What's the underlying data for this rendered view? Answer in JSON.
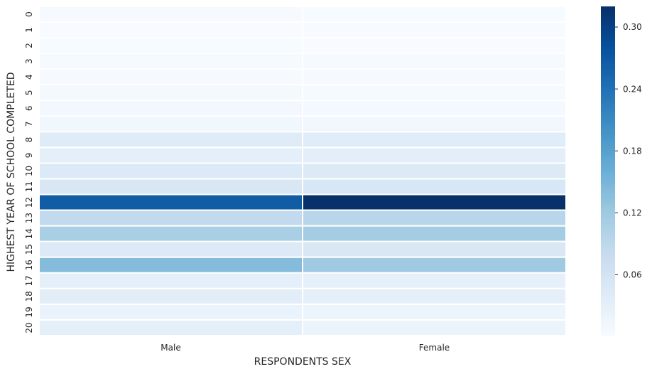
{
  "chart_data": {
    "type": "heatmap",
    "title": "",
    "xlabel": "RESPONDENTS SEX",
    "ylabel": "HIGHEST YEAR OF SCHOOL COMPLETED",
    "columns": [
      "Male",
      "Female"
    ],
    "rows": [
      "0",
      "1",
      "2",
      "3",
      "4",
      "5",
      "6",
      "7",
      "8",
      "9",
      "10",
      "11",
      "12",
      "13",
      "14",
      "15",
      "16",
      "17",
      "18",
      "19",
      "20"
    ],
    "values": [
      [
        0.003,
        0.002
      ],
      [
        0.001,
        0.001
      ],
      [
        0.002,
        0.001
      ],
      [
        0.004,
        0.004
      ],
      [
        0.003,
        0.003
      ],
      [
        0.005,
        0.004
      ],
      [
        0.008,
        0.007
      ],
      [
        0.012,
        0.011
      ],
      [
        0.04,
        0.038
      ],
      [
        0.032,
        0.033
      ],
      [
        0.045,
        0.044
      ],
      [
        0.05,
        0.052
      ],
      [
        0.265,
        0.32
      ],
      [
        0.085,
        0.095
      ],
      [
        0.11,
        0.115
      ],
      [
        0.045,
        0.05
      ],
      [
        0.14,
        0.12
      ],
      [
        0.03,
        0.028
      ],
      [
        0.035,
        0.03
      ],
      [
        0.022,
        0.018
      ],
      [
        0.03,
        0.02
      ]
    ],
    "colorbar": {
      "min": 0.001,
      "max": 0.32,
      "ticks": [
        0.06,
        0.12,
        0.18,
        0.24,
        0.3
      ],
      "tick_labels": [
        "0.06",
        "0.12",
        "0.18",
        "0.24",
        "0.30"
      ],
      "colormap": "Blues"
    }
  }
}
